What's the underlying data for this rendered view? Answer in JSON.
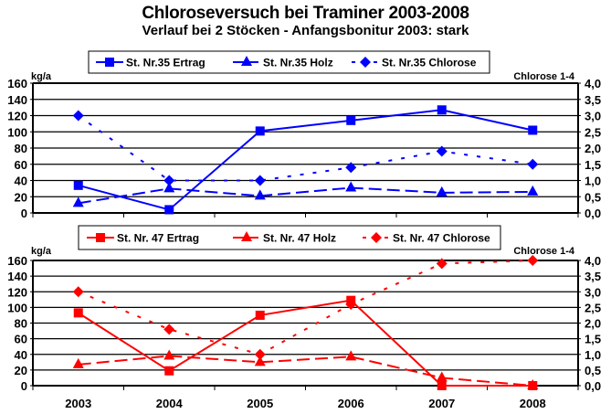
{
  "title": "Chloroseversuch bei Traminer 2003-2008",
  "subtitle": "Verlauf bei 2 Stöcken - Anfangsbonitur 2003:  stark",
  "chart_data": [
    {
      "type": "line",
      "title": "St. Nr.35",
      "categories": [
        "2003",
        "2004",
        "2005",
        "2006",
        "2007",
        "2008"
      ],
      "ylabel": "kg/a",
      "ylim": [
        0,
        160
      ],
      "yticks": [
        "0",
        "20",
        "40",
        "60",
        "80",
        "100",
        "120",
        "140",
        "160"
      ],
      "y2label": "Chlorose 1-4",
      "y2lim": [
        0,
        4
      ],
      "y2ticks": [
        "0,0",
        "0,5",
        "1,0",
        "1,5",
        "2,0",
        "2,5",
        "3,0",
        "3,5",
        "4,0"
      ],
      "grid": true,
      "legend_position": "top",
      "color": "#0000FF",
      "series": [
        {
          "name": "St. Nr.35  Ertrag",
          "axis": "left",
          "style": "solid",
          "marker": "square",
          "values": [
            34,
            4,
            101,
            114,
            127,
            102
          ]
        },
        {
          "name": "St. Nr.35  Holz",
          "axis": "left",
          "style": "dashed",
          "marker": "triangle",
          "values": [
            12,
            30,
            21,
            31,
            25,
            26
          ]
        },
        {
          "name": "St. Nr.35  Chlorose",
          "axis": "right",
          "style": "dotted",
          "marker": "diamond",
          "values": [
            3.0,
            1.0,
            1.0,
            1.4,
            1.9,
            1.5
          ]
        }
      ]
    },
    {
      "type": "line",
      "title": "St. Nr. 47",
      "categories": [
        "2003",
        "2004",
        "2005",
        "2006",
        "2007",
        "2008"
      ],
      "xlabels": [
        "2003",
        "2004",
        "2005",
        "2006",
        "2007",
        "2008"
      ],
      "ylabel": "kg/a",
      "ylim": [
        0,
        160
      ],
      "yticks": [
        "0",
        "20",
        "40",
        "60",
        "80",
        "100",
        "120",
        "140",
        "160"
      ],
      "y2label": "Chlorose 1-4",
      "y2lim": [
        0,
        4
      ],
      "y2ticks": [
        "0,0",
        "0,5",
        "1,0",
        "1,5",
        "2,0",
        "2,5",
        "3,0",
        "3,5",
        "4,0"
      ],
      "grid": true,
      "legend_position": "top",
      "color": "#FF0000",
      "series": [
        {
          "name": "St. Nr. 47 Ertrag",
          "axis": "left",
          "style": "solid",
          "marker": "square",
          "values": [
            93,
            19,
            90,
            109,
            0,
            0
          ]
        },
        {
          "name": "St. Nr. 47 Holz",
          "axis": "left",
          "style": "dashed",
          "marker": "triangle",
          "values": [
            27,
            38,
            30,
            37,
            10,
            0
          ]
        },
        {
          "name": "St. Nr. 47 Chlorose",
          "axis": "right",
          "style": "dotted",
          "marker": "diamond",
          "values": [
            3.0,
            1.8,
            1.0,
            2.6,
            3.9,
            4.0
          ]
        }
      ]
    }
  ]
}
